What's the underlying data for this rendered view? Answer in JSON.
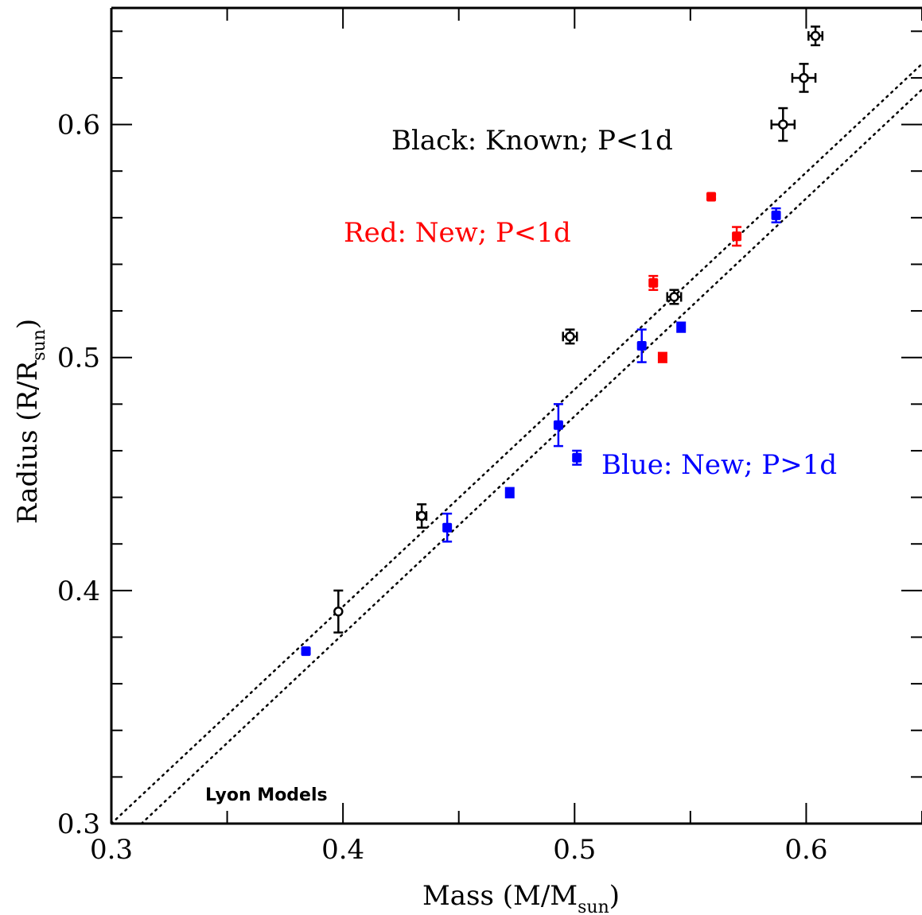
{
  "chart_data": {
    "type": "scatter",
    "title": "",
    "xlabel": {
      "main": "Mass (M/M",
      "sub": "sun",
      "close": ")"
    },
    "ylabel": {
      "main": "Radius (R/R",
      "sub": "sun",
      "close": ")"
    },
    "xlim": [
      0.3,
      0.65
    ],
    "ylim": [
      0.3,
      0.65
    ],
    "x_ticks": [
      "0.3",
      "0.4",
      "0.5",
      "0.6"
    ],
    "y_ticks": [
      "0.3",
      "0.4",
      "0.5",
      "0.6"
    ],
    "x_tick_values": [
      0.3,
      0.4,
      0.5,
      0.6
    ],
    "y_tick_values": [
      0.3,
      0.4,
      0.5,
      0.6
    ],
    "grid": false,
    "annotations": {
      "black": "Black: Known; P<1d",
      "red": "Red: New; P<1d",
      "blue": "Blue: New; P>1d",
      "model": "Lyon Models"
    },
    "colors": {
      "black": "#000000",
      "red": "#ff0000",
      "blue": "#0000ff"
    },
    "series": [
      {
        "group": "black",
        "marker": "open-circle",
        "points": [
          {
            "x": 0.398,
            "y": 0.391,
            "xerr": 0.0,
            "yerr": 0.009
          },
          {
            "x": 0.434,
            "y": 0.432,
            "xerr": 0.002,
            "yerr": 0.005
          },
          {
            "x": 0.498,
            "y": 0.509,
            "xerr": 0.003,
            "yerr": 0.003
          },
          {
            "x": 0.543,
            "y": 0.526,
            "xerr": 0.003,
            "yerr": 0.003
          },
          {
            "x": 0.59,
            "y": 0.6,
            "xerr": 0.005,
            "yerr": 0.007
          },
          {
            "x": 0.599,
            "y": 0.62,
            "xerr": 0.005,
            "yerr": 0.006
          },
          {
            "x": 0.604,
            "y": 0.638,
            "xerr": 0.003,
            "yerr": 0.004
          }
        ]
      },
      {
        "group": "red",
        "marker": "filled-square",
        "points": [
          {
            "x": 0.534,
            "y": 0.532,
            "xerr": 0.0,
            "yerr": 0.003
          },
          {
            "x": 0.538,
            "y": 0.5,
            "xerr": 0.0,
            "yerr": 0.002
          },
          {
            "x": 0.559,
            "y": 0.569,
            "xerr": 0.0,
            "yerr": 0.001
          },
          {
            "x": 0.57,
            "y": 0.552,
            "xerr": 0.0,
            "yerr": 0.004
          }
        ]
      },
      {
        "group": "blue",
        "marker": "filled-square",
        "points": [
          {
            "x": 0.384,
            "y": 0.374,
            "xerr": 0.0,
            "yerr": 0.001
          },
          {
            "x": 0.445,
            "y": 0.427,
            "xerr": 0.0,
            "yerr": 0.006
          },
          {
            "x": 0.472,
            "y": 0.442,
            "xerr": 0.0,
            "yerr": 0.002
          },
          {
            "x": 0.493,
            "y": 0.471,
            "xerr": 0.0,
            "yerr": 0.009
          },
          {
            "x": 0.501,
            "y": 0.457,
            "xerr": 0.0,
            "yerr": 0.003
          },
          {
            "x": 0.529,
            "y": 0.505,
            "xerr": 0.0,
            "yerr": 0.007
          },
          {
            "x": 0.546,
            "y": 0.513,
            "xerr": 0.0,
            "yerr": 0.002
          },
          {
            "x": 0.587,
            "y": 0.561,
            "xerr": 0.0,
            "yerr": 0.003
          }
        ]
      }
    ],
    "model_lines": [
      {
        "style": "dotted",
        "x": [
          0.3,
          0.65
        ],
        "y": [
          0.3,
          0.626
        ]
      },
      {
        "style": "dotted",
        "x": [
          0.313,
          0.65
        ],
        "y": [
          0.3,
          0.615
        ]
      }
    ]
  }
}
